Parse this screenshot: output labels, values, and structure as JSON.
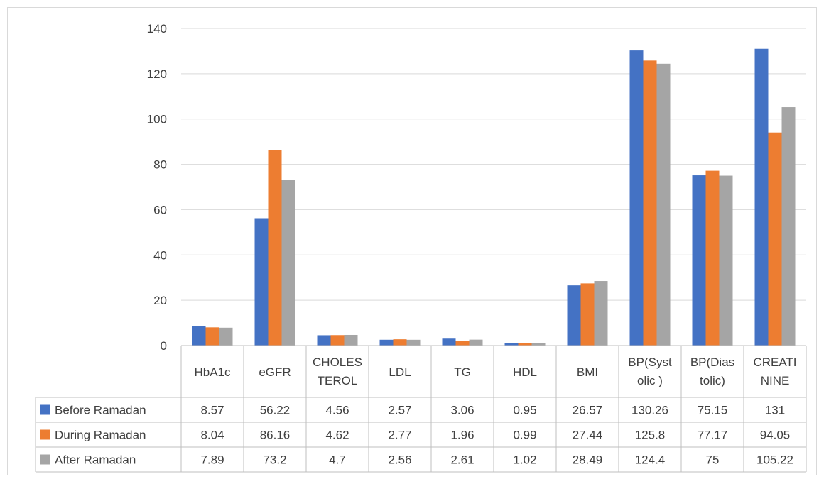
{
  "chart_data": {
    "type": "bar",
    "title": "",
    "xlabel": "",
    "ylabel": "",
    "ylim": [
      0,
      140
    ],
    "yticks": [
      0,
      20,
      40,
      60,
      80,
      100,
      120,
      140
    ],
    "grid": true,
    "legend": "data-table-left",
    "categories": [
      [
        "HbA1c"
      ],
      [
        "eGFR"
      ],
      [
        "CHOLES",
        "TEROL"
      ],
      [
        "LDL"
      ],
      [
        "TG"
      ],
      [
        "HDL"
      ],
      [
        "BMI"
      ],
      [
        "BP(Syst",
        "olic )"
      ],
      [
        "BP(Dias",
        "tolic)"
      ],
      [
        "CREATI",
        "NINE"
      ]
    ],
    "series": [
      {
        "name": "Before Ramadan",
        "color": "#4472C4",
        "values": [
          8.57,
          56.22,
          4.56,
          2.57,
          3.06,
          0.95,
          26.57,
          130.26,
          75.15,
          131
        ],
        "labels": [
          "8.57",
          "56.22",
          "4.56",
          "2.57",
          "3.06",
          "0.95",
          "26.57",
          "130.26",
          "75.15",
          "131"
        ]
      },
      {
        "name": "During Ramadan",
        "color": "#ED7D31",
        "values": [
          8.04,
          86.16,
          4.62,
          2.77,
          1.96,
          0.99,
          27.44,
          125.8,
          77.17,
          94.05
        ],
        "labels": [
          "8.04",
          "86.16",
          "4.62",
          "2.77",
          "1.96",
          "0.99",
          "27.44",
          "125.8",
          "77.17",
          "94.05"
        ]
      },
      {
        "name": "After Ramadan",
        "color": "#A5A5A5",
        "values": [
          7.89,
          73.2,
          4.7,
          2.56,
          2.61,
          1.02,
          28.49,
          124.4,
          75,
          105.22
        ],
        "labels": [
          "7.89",
          "73.2",
          "4.7",
          "2.56",
          "2.61",
          "1.02",
          "28.49",
          "124.4",
          "75",
          "105.22"
        ]
      }
    ]
  }
}
